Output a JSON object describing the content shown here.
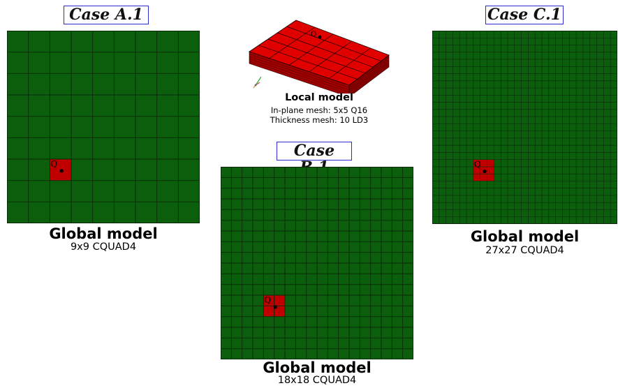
{
  "colors": {
    "plate": "#0b5e0b",
    "grid": "#0a2a0a",
    "local_region": "#c00000",
    "case_border": "#2a2ad0"
  },
  "local_model": {
    "title": "Local model",
    "line1": "In-plane mesh: 5x5 Q16",
    "line2": "Thickness mesh: 10 LD3",
    "point_label": "Q"
  },
  "cases": [
    {
      "label": "Case A.1",
      "title": "Global model",
      "subtitle": "9x9 CQUAD4",
      "divisions": 9,
      "point_label": "Q",
      "local_cells": 1,
      "local_col": 2,
      "local_row": 6
    },
    {
      "label": "Case B.1",
      "title": "Global model",
      "subtitle": "18x18 CQUAD4",
      "divisions": 18,
      "point_label": "Q",
      "local_cells": 2,
      "local_col": 4,
      "local_row": 12
    },
    {
      "label": "Case C.1",
      "title": "Global model",
      "subtitle": "27x27 CQUAD4",
      "divisions": 27,
      "point_label": "Q",
      "local_cells": 3,
      "local_col": 6,
      "local_row": 18
    }
  ]
}
